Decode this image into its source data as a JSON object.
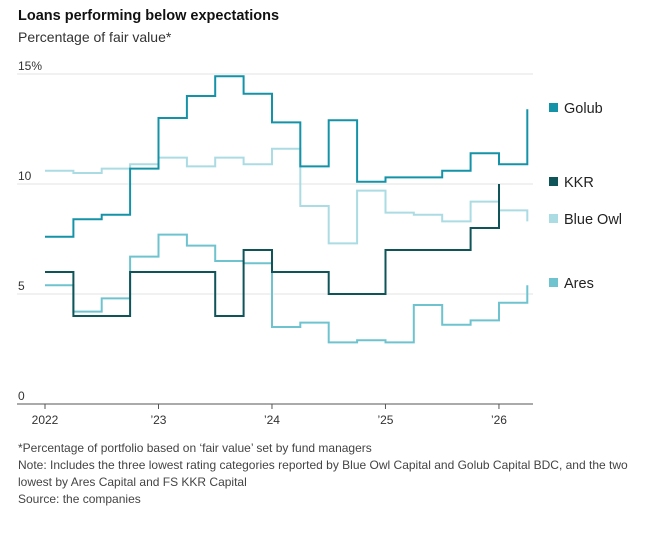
{
  "header": {
    "title": "Loans performing below expectations",
    "subtitle": "Percentage of fair value*"
  },
  "notes": {
    "footnote": "*Percentage of portfolio based on ‘fair value’ set by fund managers",
    "note": "Note: Includes the three lowest rating categories reported by Blue Owl Capital and Golub Capital BDC, and the two lowest by Ares Capital and FS KKR Capital",
    "source": "Source: the companies"
  },
  "chart_data": {
    "type": "line",
    "step": true,
    "ylim": [
      0,
      15
    ],
    "yticks": [
      0,
      5,
      10,
      15
    ],
    "ytick_labels": [
      "0",
      "5",
      "10",
      "15%"
    ],
    "xlim": [
      2022.0,
      2026.3
    ],
    "xticks": [
      2022,
      2023,
      2024,
      2025,
      2026
    ],
    "xtick_labels": [
      "2022",
      "’23",
      "’24",
      "’25",
      "’26"
    ],
    "grid": true,
    "legend_position": "right",
    "series": [
      {
        "name": "Golub",
        "color": "#1493a8",
        "x": [
          2022.0,
          2022.25,
          2022.5,
          2022.75,
          2023.0,
          2023.25,
          2023.5,
          2023.75,
          2024.0,
          2024.25,
          2024.5,
          2024.75,
          2025.0,
          2025.25,
          2025.5,
          2025.75,
          2026.0,
          2026.25
        ],
        "y": [
          7.6,
          8.4,
          8.6,
          10.7,
          13.0,
          14.0,
          14.9,
          14.1,
          12.8,
          10.8,
          12.9,
          10.1,
          10.3,
          10.3,
          10.6,
          11.4,
          10.9,
          13.4
        ]
      },
      {
        "name": "KKR",
        "color": "#0e5458",
        "x": [
          2022.0,
          2022.25,
          2022.5,
          2022.75,
          2023.0,
          2023.25,
          2023.5,
          2023.75,
          2024.0,
          2024.25,
          2024.5,
          2024.75,
          2025.0,
          2025.25,
          2025.5,
          2025.75,
          2026.0
        ],
        "y": [
          6.0,
          4.0,
          4.0,
          6.0,
          6.0,
          6.0,
          4.0,
          7.0,
          6.0,
          6.0,
          5.0,
          5.0,
          7.0,
          7.0,
          7.0,
          8.0,
          10.0
        ]
      },
      {
        "name": "Blue Owl",
        "color": "#abdbe3",
        "x": [
          2022.0,
          2022.25,
          2022.5,
          2022.75,
          2023.0,
          2023.25,
          2023.5,
          2023.75,
          2024.0,
          2024.25,
          2024.5,
          2024.75,
          2025.0,
          2025.25,
          2025.5,
          2025.75,
          2026.0,
          2026.25
        ],
        "y": [
          10.6,
          10.5,
          10.7,
          10.9,
          11.2,
          10.8,
          11.2,
          10.9,
          11.6,
          9.0,
          7.3,
          9.7,
          8.7,
          8.6,
          8.3,
          9.2,
          8.8,
          8.3
        ]
      },
      {
        "name": "Ares",
        "color": "#6ec3cf",
        "x": [
          2022.0,
          2022.25,
          2022.5,
          2022.75,
          2023.0,
          2023.25,
          2023.5,
          2023.75,
          2024.0,
          2024.25,
          2024.5,
          2024.75,
          2025.0,
          2025.25,
          2025.5,
          2025.75,
          2026.0,
          2026.25
        ],
        "y": [
          5.4,
          4.2,
          4.8,
          6.7,
          7.7,
          7.2,
          6.5,
          6.4,
          3.5,
          3.7,
          2.8,
          2.9,
          2.8,
          4.5,
          3.6,
          3.8,
          4.6,
          5.4
        ]
      }
    ]
  }
}
